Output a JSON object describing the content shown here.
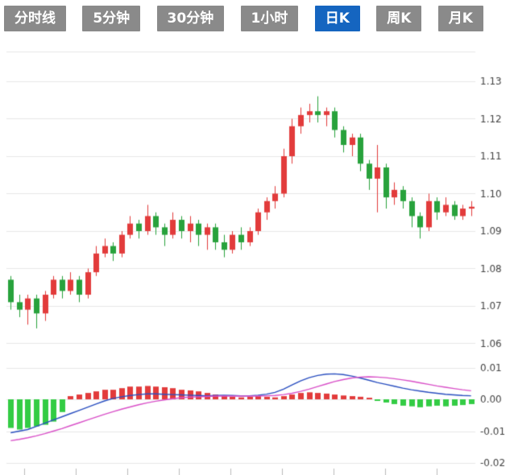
{
  "tabs": {
    "items": [
      {
        "label": "分时线",
        "active": false
      },
      {
        "label": "5分钟",
        "active": false
      },
      {
        "label": "30分钟",
        "active": false
      },
      {
        "label": "1小时",
        "active": false
      },
      {
        "label": "日K",
        "active": true
      },
      {
        "label": "周K",
        "active": false
      },
      {
        "label": "月K",
        "active": false
      }
    ]
  },
  "colors": {
    "tab_bg": "#8a8a8a",
    "tab_active_bg": "#1565c0",
    "tab_text": "#ffffff",
    "up": "#e23b3b",
    "down": "#28a23c",
    "down_bright": "#33cc44",
    "dif_line": "#2a4fc0",
    "dea_line": "#d950c8",
    "grid": "#e8e8e8",
    "axis_text": "#444444",
    "background": "#ffffff"
  },
  "chart_data": {
    "type": "candlestick_with_macd",
    "title": "",
    "color_convention": "red-up-green-down",
    "price_axis": {
      "ticks": [
        "1.13",
        "1.12",
        "1.11",
        "1.10",
        "1.09",
        "1.08",
        "1.07",
        "1.06"
      ],
      "position": "right",
      "grid": true
    },
    "macd_axis": {
      "ticks": [
        "0.01",
        "0.00",
        "-0.01",
        "-0.02"
      ],
      "position": "right",
      "grid": true
    },
    "candles": [
      [
        1.077,
        1.078,
        1.069,
        1.071
      ],
      [
        1.071,
        1.073,
        1.067,
        1.069
      ],
      [
        1.069,
        1.073,
        1.065,
        1.072
      ],
      [
        1.072,
        1.073,
        1.064,
        1.068
      ],
      [
        1.068,
        1.074,
        1.066,
        1.073
      ],
      [
        1.073,
        1.078,
        1.072,
        1.077
      ],
      [
        1.077,
        1.078,
        1.072,
        1.074
      ],
      [
        1.074,
        1.079,
        1.073,
        1.077
      ],
      [
        1.077,
        1.078,
        1.071,
        1.073
      ],
      [
        1.073,
        1.08,
        1.072,
        1.079
      ],
      [
        1.079,
        1.086,
        1.078,
        1.084
      ],
      [
        1.084,
        1.088,
        1.083,
        1.086
      ],
      [
        1.086,
        1.087,
        1.082,
        1.084
      ],
      [
        1.084,
        1.09,
        1.083,
        1.089
      ],
      [
        1.089,
        1.094,
        1.088,
        1.092
      ],
      [
        1.092,
        1.093,
        1.088,
        1.09
      ],
      [
        1.09,
        1.097,
        1.089,
        1.094
      ],
      [
        1.094,
        1.095,
        1.089,
        1.091
      ],
      [
        1.091,
        1.092,
        1.086,
        1.089
      ],
      [
        1.089,
        1.095,
        1.088,
        1.093
      ],
      [
        1.093,
        1.094,
        1.088,
        1.09
      ],
      [
        1.09,
        1.094,
        1.087,
        1.092
      ],
      [
        1.092,
        1.093,
        1.086,
        1.089
      ],
      [
        1.089,
        1.092,
        1.085,
        1.091
      ],
      [
        1.091,
        1.092,
        1.085,
        1.087
      ],
      [
        1.087,
        1.089,
        1.083,
        1.085
      ],
      [
        1.085,
        1.09,
        1.084,
        1.089
      ],
      [
        1.089,
        1.091,
        1.085,
        1.087
      ],
      [
        1.087,
        1.091,
        1.086,
        1.09
      ],
      [
        1.09,
        1.096,
        1.089,
        1.095
      ],
      [
        1.095,
        1.099,
        1.093,
        1.098
      ],
      [
        1.098,
        1.102,
        1.096,
        1.1
      ],
      [
        1.1,
        1.112,
        1.099,
        1.11
      ],
      [
        1.11,
        1.12,
        1.108,
        1.118
      ],
      [
        1.118,
        1.123,
        1.116,
        1.121
      ],
      [
        1.121,
        1.124,
        1.119,
        1.122
      ],
      [
        1.122,
        1.126,
        1.119,
        1.121
      ],
      [
        1.121,
        1.123,
        1.118,
        1.122
      ],
      [
        1.122,
        1.123,
        1.115,
        1.117
      ],
      [
        1.117,
        1.118,
        1.111,
        1.113
      ],
      [
        1.113,
        1.116,
        1.11,
        1.115
      ],
      [
        1.115,
        1.116,
        1.106,
        1.108
      ],
      [
        1.108,
        1.109,
        1.101,
        1.104
      ],
      [
        1.104,
        1.113,
        1.095,
        1.107
      ],
      [
        1.107,
        1.108,
        1.096,
        1.099
      ],
      [
        1.099,
        1.103,
        1.097,
        1.101
      ],
      [
        1.101,
        1.102,
        1.096,
        1.098
      ],
      [
        1.098,
        1.099,
        1.091,
        1.094
      ],
      [
        1.094,
        1.095,
        1.088,
        1.091
      ],
      [
        1.091,
        1.1,
        1.09,
        1.098
      ],
      [
        1.098,
        1.099,
        1.093,
        1.095
      ],
      [
        1.095,
        1.099,
        1.094,
        1.097
      ],
      [
        1.097,
        1.098,
        1.093,
        1.094
      ],
      [
        1.094,
        1.097,
        1.093,
        1.096
      ],
      [
        1.096,
        1.098,
        1.094,
        1.0965
      ]
    ],
    "macd": {
      "histogram": [
        -0.009,
        -0.0095,
        -0.009,
        -0.0085,
        -0.008,
        -0.007,
        -0.004,
        0.001,
        0.0015,
        0.002,
        0.0025,
        0.003,
        0.003,
        0.0035,
        0.004,
        0.004,
        0.0042,
        0.004,
        0.0038,
        0.0035,
        0.003,
        0.0028,
        0.0025,
        0.002,
        0.0015,
        0.001,
        0.0008,
        0.0006,
        0.0008,
        0.001,
        0.0008,
        0.0006,
        0.001,
        0.0015,
        0.002,
        0.0022,
        0.002,
        0.0018,
        0.0015,
        0.0012,
        0.001,
        0.0008,
        0.0005,
        -0.0005,
        -0.001,
        -0.0015,
        -0.002,
        -0.0022,
        -0.0025,
        -0.0022,
        -0.002,
        -0.0022,
        -0.002,
        -0.0018,
        -0.0015
      ],
      "dif": [
        -0.0105,
        -0.01,
        -0.0095,
        -0.0085,
        -0.0075,
        -0.0065,
        -0.0055,
        -0.0045,
        -0.0035,
        -0.0025,
        -0.0015,
        -0.0005,
        0.0003,
        0.0008,
        0.0012,
        0.0015,
        0.0017,
        0.0017,
        0.0016,
        0.0015,
        0.0014,
        0.0013,
        0.0012,
        0.0011,
        0.0012,
        0.0013,
        0.0012,
        0.0011,
        0.0011,
        0.0013,
        0.0016,
        0.0022,
        0.0032,
        0.0045,
        0.0058,
        0.0068,
        0.0075,
        0.0079,
        0.008,
        0.0078,
        0.0073,
        0.0067,
        0.006,
        0.0053,
        0.0047,
        0.0041,
        0.0035,
        0.003,
        0.0026,
        0.0022,
        0.0019,
        0.0016,
        0.0014,
        0.0012,
        0.0011
      ],
      "dea": [
        -0.013,
        -0.0126,
        -0.0121,
        -0.0115,
        -0.0108,
        -0.01,
        -0.0092,
        -0.0083,
        -0.0074,
        -0.0065,
        -0.0056,
        -0.0047,
        -0.0039,
        -0.0031,
        -0.0024,
        -0.0017,
        -0.0011,
        -0.0006,
        -0.0002,
        0.0002,
        0.0005,
        0.0007,
        0.0008,
        0.0009,
        0.001,
        0.001,
        0.001,
        0.001,
        0.001,
        0.001,
        0.0011,
        0.0012,
        0.0015,
        0.0019,
        0.0025,
        0.0032,
        0.004,
        0.0048,
        0.0056,
        0.0062,
        0.0067,
        0.007,
        0.0071,
        0.007,
        0.0068,
        0.0065,
        0.0061,
        0.0057,
        0.0052,
        0.0047,
        0.0042,
        0.0038,
        0.0034,
        0.003,
        0.0027
      ]
    }
  }
}
